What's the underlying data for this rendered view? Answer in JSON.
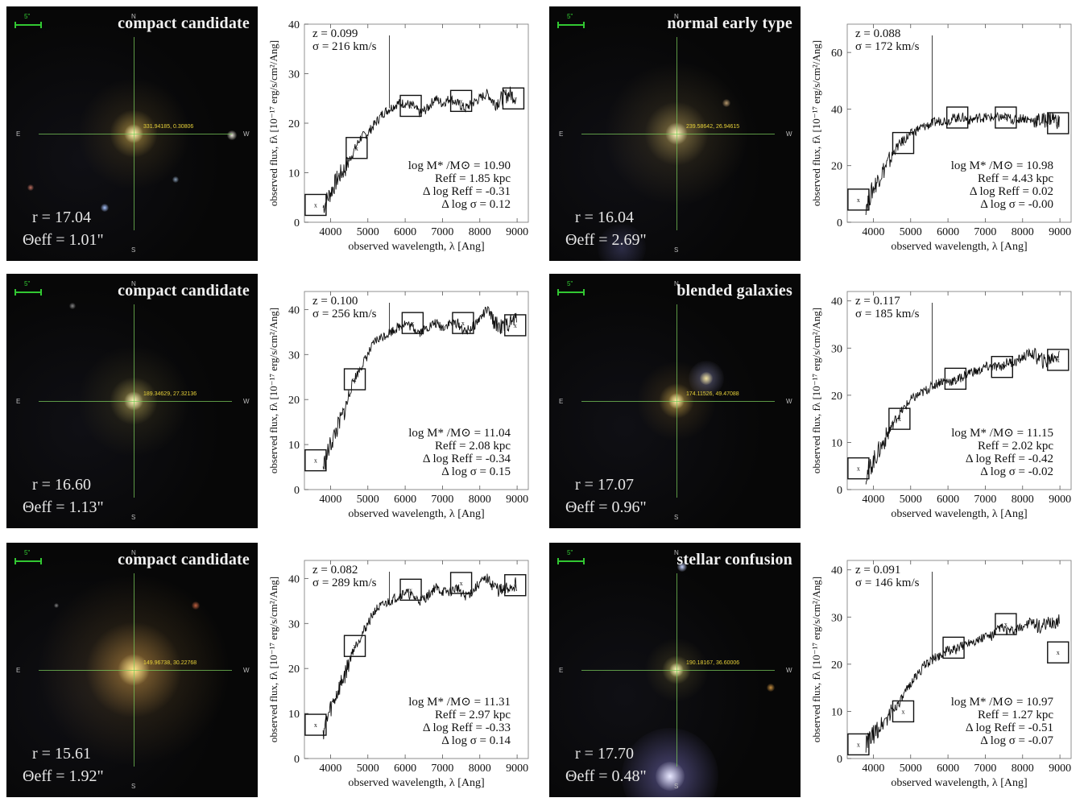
{
  "scale_label": "5\"",
  "compass": {
    "n": "N",
    "s": "S",
    "e": "E",
    "w": "W"
  },
  "panels": [
    {
      "image": {
        "title": "compact candidate",
        "coords": "331.94185, 0.30806",
        "mag": "r = 17.04",
        "theta": "Θeff = 1.01\""
      },
      "spectrum": {
        "z": "z = 0.099",
        "sigma": "σ = 216 km/s",
        "mass": "log M* /M⊙ = 10.90",
        "reff": "Reff =  1.85 kpc",
        "dlogreff": "Δ log Reff = -0.31",
        "dlogsigma": "Δ log σ = 0.12",
        "yticks": [
          0,
          10,
          20,
          30,
          40
        ],
        "ymax": 40
      },
      "chart_data": {
        "type": "line",
        "xlim": [
          3300,
          9300
        ],
        "ylim": [
          0,
          40
        ],
        "xticks": [
          4000,
          5000,
          6000,
          7000,
          8000,
          9000
        ],
        "yticks": [
          0,
          10,
          20,
          30,
          40
        ],
        "x": [
          3800,
          4000,
          4200,
          4400,
          4600,
          4800,
          5000,
          5200,
          5400,
          5600,
          5800,
          6000,
          6200,
          6400,
          6600,
          6800,
          7000,
          7200,
          7400,
          7600,
          7800,
          8000,
          8200,
          8400,
          8600,
          8800,
          9000
        ],
        "y": [
          3,
          6,
          9,
          11,
          14,
          17,
          18,
          20,
          22,
          23,
          24,
          24,
          23.5,
          22,
          23,
          25,
          24,
          25,
          24,
          23,
          24,
          25,
          26,
          24,
          25,
          26,
          25
        ],
        "boxes": [
          {
            "x": 3600,
            "y": 3.5
          },
          {
            "x": 4700,
            "y": 15
          },
          {
            "x": 6150,
            "y": 23.5
          },
          {
            "x": 7500,
            "y": 24.5
          },
          {
            "x": 8900,
            "y": 25
          }
        ]
      }
    },
    {
      "image": {
        "title": "normal early type",
        "coords": "239.58642, 26.94615",
        "mag": "r = 16.04",
        "theta": "Θeff = 2.69\""
      },
      "spectrum": {
        "z": "z = 0.088",
        "sigma": "σ = 172 km/s",
        "mass": "log M* /M⊙ = 10.98",
        "reff": "Reff =  4.43 kpc",
        "dlogreff": "Δ log Reff = 0.02",
        "dlogsigma": "Δ log σ = -0.00",
        "yticks": [
          0,
          20,
          40,
          60
        ],
        "ymax": 70
      },
      "chart_data": {
        "type": "line",
        "xlim": [
          3300,
          9300
        ],
        "ylim": [
          0,
          70
        ],
        "xticks": [
          4000,
          5000,
          6000,
          7000,
          8000,
          9000
        ],
        "yticks": [
          0,
          20,
          40,
          60
        ],
        "x": [
          3800,
          4000,
          4200,
          4400,
          4600,
          4800,
          5000,
          5200,
          5400,
          5600,
          5800,
          6000,
          6200,
          6400,
          6600,
          6800,
          7000,
          7200,
          7400,
          7600,
          7800,
          8000,
          8200,
          8400,
          8600,
          8800,
          9000
        ],
        "y": [
          6,
          12,
          17,
          21,
          26,
          29,
          31,
          33,
          34,
          35,
          36,
          36,
          37,
          37,
          36,
          37,
          37,
          37,
          37,
          37,
          36,
          37,
          36,
          36,
          36,
          37,
          35
        ],
        "boxes": [
          {
            "x": 3600,
            "y": 8
          },
          {
            "x": 4800,
            "y": 28
          },
          {
            "x": 6250,
            "y": 37
          },
          {
            "x": 7550,
            "y": 37
          },
          {
            "x": 8950,
            "y": 35
          }
        ]
      }
    },
    {
      "image": {
        "title": "compact candidate",
        "coords": "189.34629, 27.32136",
        "mag": "r = 16.60",
        "theta": "Θeff = 1.13\""
      },
      "spectrum": {
        "z": "z = 0.100",
        "sigma": "σ = 256 km/s",
        "mass": "log M* /M⊙ = 11.04",
        "reff": "Reff =  2.08 kpc",
        "dlogreff": "Δ log Reff = -0.34",
        "dlogsigma": "Δ log σ = 0.15",
        "yticks": [
          0,
          10,
          20,
          30,
          40
        ],
        "ymax": 44
      },
      "chart_data": {
        "type": "line",
        "xlim": [
          3300,
          9300
        ],
        "ylim": [
          0,
          44
        ],
        "xticks": [
          4000,
          5000,
          6000,
          7000,
          8000,
          9000
        ],
        "yticks": [
          0,
          10,
          20,
          30,
          40
        ],
        "x": [
          3800,
          4000,
          4200,
          4400,
          4600,
          4800,
          5000,
          5200,
          5400,
          5600,
          5800,
          6000,
          6200,
          6400,
          6600,
          6800,
          7000,
          7200,
          7400,
          7600,
          7800,
          8000,
          8200,
          8400,
          8600,
          8800,
          9000
        ],
        "y": [
          5,
          10,
          14,
          18,
          24,
          27,
          30,
          33,
          34,
          35,
          36,
          37,
          36,
          35,
          36,
          37,
          36,
          37,
          37,
          35,
          36,
          38,
          40,
          37,
          36,
          37,
          38
        ],
        "boxes": [
          {
            "x": 3600,
            "y": 6.5
          },
          {
            "x": 4650,
            "y": 24.5
          },
          {
            "x": 6200,
            "y": 37
          },
          {
            "x": 7550,
            "y": 37
          },
          {
            "x": 8950,
            "y": 36.5
          }
        ]
      }
    },
    {
      "image": {
        "title": "blended galaxies",
        "coords": "174.11526, 49.47088",
        "mag": "r = 17.07",
        "theta": "Θeff = 0.96\""
      },
      "spectrum": {
        "z": "z = 0.117",
        "sigma": "σ = 185 km/s",
        "mass": "log M* /M⊙ = 11.15",
        "reff": "Reff =  2.02 kpc",
        "dlogreff": "Δ log Reff = -0.42",
        "dlogsigma": "Δ log σ = -0.02",
        "yticks": [
          0,
          10,
          20,
          30,
          40
        ],
        "ymax": 42
      },
      "chart_data": {
        "type": "line",
        "xlim": [
          3300,
          9300
        ],
        "ylim": [
          0,
          42
        ],
        "xticks": [
          4000,
          5000,
          6000,
          7000,
          8000,
          9000
        ],
        "yticks": [
          0,
          10,
          20,
          30,
          40
        ],
        "x": [
          3800,
          4000,
          4200,
          4400,
          4600,
          4800,
          5000,
          5200,
          5400,
          5600,
          5800,
          6000,
          6200,
          6400,
          6600,
          6800,
          7000,
          7200,
          7400,
          7600,
          7800,
          8000,
          8200,
          8400,
          8600,
          8800,
          9000
        ],
        "y": [
          3,
          6,
          9,
          12,
          15,
          17,
          19,
          20,
          21,
          22,
          23,
          23,
          23,
          24,
          25,
          25,
          26,
          26,
          26,
          27,
          27,
          28,
          29,
          28,
          27,
          28,
          29
        ],
        "boxes": [
          {
            "x": 3600,
            "y": 4.5
          },
          {
            "x": 4700,
            "y": 15
          },
          {
            "x": 6200,
            "y": 23.5
          },
          {
            "x": 7450,
            "y": 26
          },
          {
            "x": 8950,
            "y": 27.5
          }
        ]
      }
    },
    {
      "image": {
        "title": "compact candidate",
        "coords": "149.96738, 30.22768",
        "mag": "r = 15.61",
        "theta": "Θeff = 1.92\""
      },
      "spectrum": {
        "z": "z = 0.082",
        "sigma": "σ = 289 km/s",
        "mass": "log M* /M⊙ = 11.31",
        "reff": "Reff =  2.97 kpc",
        "dlogreff": "Δ log Reff = -0.33",
        "dlogsigma": "Δ log σ = 0.14",
        "yticks": [
          0,
          10,
          20,
          30,
          40
        ],
        "ymax": 44
      },
      "chart_data": {
        "type": "line",
        "xlim": [
          3300,
          9300
        ],
        "ylim": [
          0,
          44
        ],
        "xticks": [
          4000,
          5000,
          6000,
          7000,
          8000,
          9000
        ],
        "yticks": [
          0,
          10,
          20,
          30,
          40
        ],
        "x": [
          3800,
          4000,
          4200,
          4400,
          4600,
          4800,
          5000,
          5200,
          5400,
          5600,
          5800,
          6000,
          6200,
          6400,
          6600,
          6800,
          7000,
          7200,
          7400,
          7600,
          7800,
          8000,
          8200,
          8400,
          8600,
          8800,
          9000
        ],
        "y": [
          6,
          11,
          15,
          19,
          24,
          27,
          30,
          33,
          34,
          35,
          36,
          37,
          36,
          35,
          36,
          38,
          37,
          37,
          38,
          36,
          37,
          39,
          40,
          38,
          37,
          38,
          39
        ],
        "boxes": [
          {
            "x": 3600,
            "y": 7.5
          },
          {
            "x": 4650,
            "y": 25
          },
          {
            "x": 6150,
            "y": 37.5
          },
          {
            "x": 7500,
            "y": 39
          },
          {
            "x": 8950,
            "y": 38.5
          }
        ]
      }
    },
    {
      "image": {
        "title": "stellar confusion",
        "coords": "190.18167, 36.60006",
        "mag": "r = 17.70",
        "theta": "Θeff = 0.48\""
      },
      "spectrum": {
        "z": "z = 0.091",
        "sigma": "σ = 146 km/s",
        "mass": "log M* /M⊙ = 10.97",
        "reff": "Reff =  1.27 kpc",
        "dlogreff": "Δ log Reff = -0.51",
        "dlogsigma": "Δ log σ = -0.07",
        "yticks": [
          0,
          10,
          20,
          30,
          40
        ],
        "ymax": 42
      },
      "chart_data": {
        "type": "line",
        "xlim": [
          3300,
          9300
        ],
        "ylim": [
          0,
          42
        ],
        "xticks": [
          4000,
          5000,
          6000,
          7000,
          8000,
          9000
        ],
        "yticks": [
          0,
          10,
          20,
          30,
          40
        ],
        "x": [
          3800,
          4000,
          4200,
          4400,
          4600,
          4800,
          5000,
          5200,
          5400,
          5600,
          5800,
          6000,
          6200,
          6400,
          6600,
          6800,
          7000,
          7200,
          7400,
          7600,
          7800,
          8000,
          8200,
          8400,
          8600,
          8800,
          9000
        ],
        "y": [
          3,
          5,
          7,
          9,
          11,
          13,
          16,
          18,
          20,
          21,
          22,
          23,
          23,
          24,
          25,
          25,
          26,
          26,
          28,
          27,
          27,
          28,
          29,
          28,
          28,
          29,
          29
        ],
        "boxes": [
          {
            "x": 3600,
            "y": 3
          },
          {
            "x": 4800,
            "y": 10
          },
          {
            "x": 6150,
            "y": 23.5
          },
          {
            "x": 7550,
            "y": 28.5
          },
          {
            "x": 8950,
            "y": 22.5
          }
        ]
      }
    }
  ],
  "xlabel": "observed wavelength, λ [Ang]",
  "ylabel": "observed flux, fλ [10⁻¹⁷ erg/s/cm²/Ang]"
}
